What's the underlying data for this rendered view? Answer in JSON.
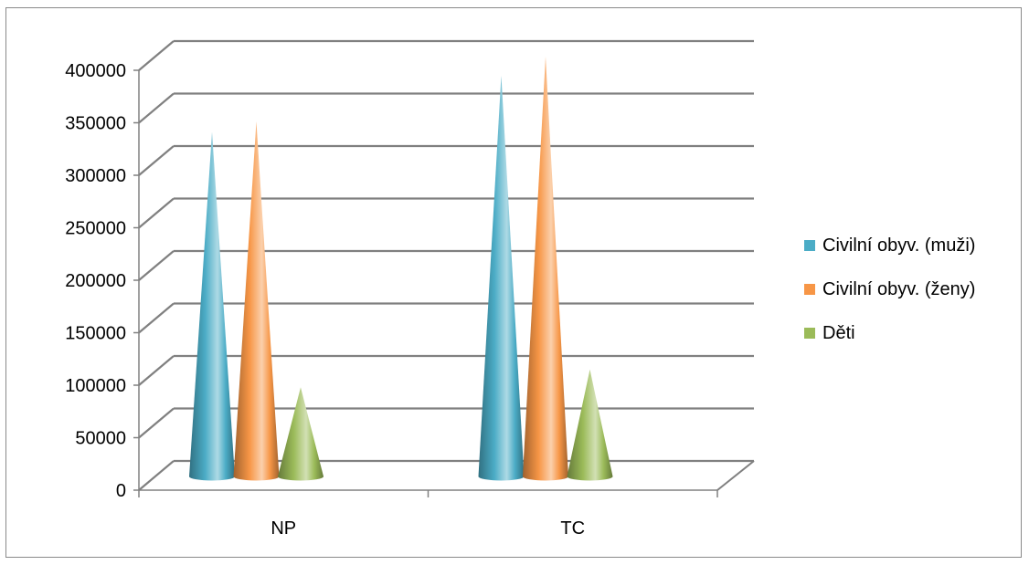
{
  "chart_data": {
    "type": "bar",
    "bar_shape": "cone",
    "three_d": true,
    "categories": [
      "NP",
      "TC"
    ],
    "series": [
      {
        "name": "Civilní obyv. (muži)",
        "values": [
          328000,
          382000
        ],
        "color": "#4bacc6"
      },
      {
        "name": "Civilní obyv. (ženy)",
        "values": [
          338000,
          400000
        ],
        "color": "#f79646"
      },
      {
        "name": "Děti",
        "values": [
          85000,
          102000
        ],
        "color": "#9bbb59"
      }
    ],
    "yticks": [
      0,
      50000,
      100000,
      150000,
      200000,
      250000,
      300000,
      350000,
      400000
    ],
    "ylim": [
      0,
      400000
    ],
    "grid": true,
    "legend_position": "right"
  }
}
